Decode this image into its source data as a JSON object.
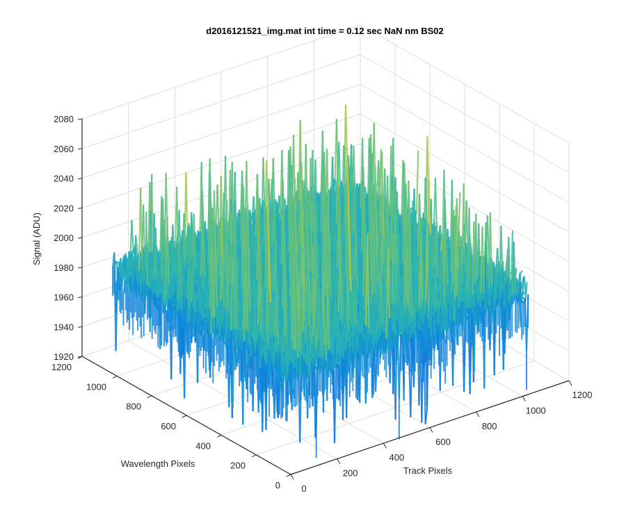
{
  "chart_data": {
    "type": "surface",
    "title": "d2016121521_img.mat int time = 0.12 sec  NaN nm BS02",
    "xlabel": "Track Pixels",
    "ylabel": "Wavelength Pixels",
    "zlabel": "Signal (ADU)",
    "xlim": [
      0,
      1200
    ],
    "ylim": [
      0,
      1200
    ],
    "zlim": [
      1920,
      2080
    ],
    "x_ticks": [
      "0",
      "200",
      "400",
      "600",
      "800",
      "1000",
      "1200"
    ],
    "y_ticks": [
      "0",
      "200",
      "400",
      "600",
      "800",
      "1000",
      "1200"
    ],
    "z_ticks": [
      "1920",
      "1940",
      "1960",
      "1980",
      "2000",
      "2020",
      "2040",
      "2060",
      "2080"
    ],
    "data_extent": {
      "x": [
        0,
        1024
      ],
      "y": [
        0,
        1024
      ]
    },
    "z_typical_range": [
      1960,
      2020
    ],
    "z_mean_approx": 1990,
    "z_max_approx": 2072,
    "z_min_approx": 1912,
    "grid": true,
    "colormap": "parula",
    "colors": {
      "low": "#0f8fd8",
      "mid": "#3cb8a8",
      "high": "#c8c82c"
    }
  }
}
